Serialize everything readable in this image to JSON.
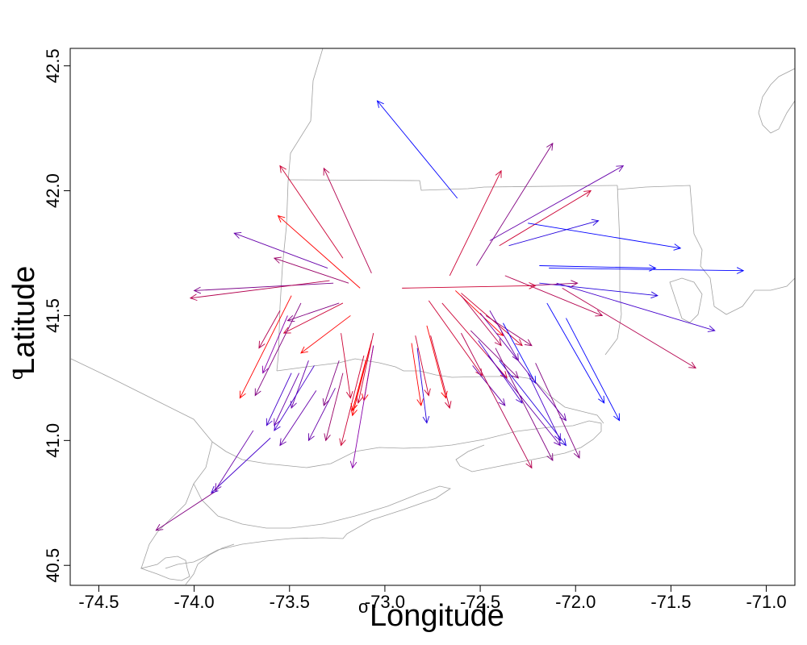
{
  "chart_data": {
    "type": "vector-field",
    "xlabel": "Longitude",
    "ylabel": "Latitude",
    "degree_symbol": "o",
    "xlim": [
      -74.65,
      -70.85
    ],
    "ylim": [
      40.42,
      42.57
    ],
    "xticks": [
      -74.5,
      -74.0,
      -73.5,
      -73.0,
      -72.5,
      -72.0,
      -71.5,
      -71.0
    ],
    "xtick_labels": [
      "-74.5",
      "-74.0",
      "-73.5",
      "-73.0",
      "-72.5",
      "-72.0",
      "-71.5",
      "-71.0"
    ],
    "yticks": [
      40.5,
      41.0,
      41.5,
      42.0,
      42.5
    ],
    "ytick_labels": [
      "40.5",
      "41.0",
      "41.5",
      "42.0",
      "42.5"
    ],
    "grid": false,
    "colors": {
      "red": "#ff0000",
      "purple": "#800080",
      "blue": "#0000ff",
      "map": "#a0a0a0"
    },
    "arrows": [
      {
        "x0": -73.22,
        "y0": 41.73,
        "x1": -73.55,
        "y1": 42.1,
        "color": "#cc0033"
      },
      {
        "x0": -73.13,
        "y0": 41.61,
        "x1": -73.56,
        "y1": 41.9,
        "color": "#ff0000"
      },
      {
        "x0": -73.07,
        "y0": 41.67,
        "x1": -73.32,
        "y1": 42.09,
        "color": "#b3004d"
      },
      {
        "x0": -73.3,
        "y0": 41.69,
        "x1": -73.79,
        "y1": 41.83,
        "color": "#6600aa"
      },
      {
        "x0": -73.19,
        "y0": 41.63,
        "x1": -73.58,
        "y1": 41.73,
        "color": "#990066"
      },
      {
        "x0": -73.27,
        "y0": 41.63,
        "x1": -74.0,
        "y1": 41.6,
        "color": "#7a0088"
      },
      {
        "x0": -73.29,
        "y0": 41.64,
        "x1": -74.02,
        "y1": 41.57,
        "color": "#b3004d"
      },
      {
        "x0": -73.24,
        "y0": 41.55,
        "x1": -73.51,
        "y1": 41.48,
        "color": "#800080"
      },
      {
        "x0": -73.22,
        "y0": 41.55,
        "x1": -73.53,
        "y1": 41.43,
        "color": "#cc0033"
      },
      {
        "x0": -73.18,
        "y0": 41.5,
        "x1": -73.44,
        "y1": 41.35,
        "color": "#ff0000"
      },
      {
        "x0": -73.49,
        "y0": 41.58,
        "x1": -73.76,
        "y1": 41.17,
        "color": "#ff0000"
      },
      {
        "x0": -73.55,
        "y0": 41.52,
        "x1": -73.66,
        "y1": 41.37,
        "color": "#b3004d"
      },
      {
        "x0": -73.44,
        "y0": 41.55,
        "x1": -73.68,
        "y1": 41.18,
        "color": "#800080"
      },
      {
        "x0": -73.51,
        "y0": 41.5,
        "x1": -73.64,
        "y1": 41.27,
        "color": "#8800aa"
      },
      {
        "x0": -73.49,
        "y0": 41.27,
        "x1": -73.62,
        "y1": 41.06,
        "color": "#4400cc"
      },
      {
        "x0": -73.45,
        "y0": 41.27,
        "x1": -73.58,
        "y1": 41.06,
        "color": "#6600aa"
      },
      {
        "x0": -73.4,
        "y0": 41.32,
        "x1": -73.49,
        "y1": 41.13,
        "color": "#6600aa"
      },
      {
        "x0": -73.37,
        "y0": 41.3,
        "x1": -73.58,
        "y1": 41.04,
        "color": "#4400cc"
      },
      {
        "x0": -73.36,
        "y0": 41.2,
        "x1": -73.55,
        "y1": 40.98,
        "color": "#6600aa"
      },
      {
        "x0": -73.26,
        "y0": 41.21,
        "x1": -73.4,
        "y1": 41.0,
        "color": "#6600aa"
      },
      {
        "x0": -73.22,
        "y0": 41.27,
        "x1": -73.31,
        "y1": 41.0,
        "color": "#990066"
      },
      {
        "x0": -73.24,
        "y0": 41.32,
        "x1": -73.32,
        "y1": 41.14,
        "color": "#800080"
      },
      {
        "x0": -73.11,
        "y0": 41.34,
        "x1": -73.23,
        "y1": 40.98,
        "color": "#cc0033"
      },
      {
        "x0": -73.08,
        "y0": 41.37,
        "x1": -73.17,
        "y1": 41.12,
        "color": "#ff0000"
      },
      {
        "x0": -73.07,
        "y0": 41.4,
        "x1": -73.17,
        "y1": 41.1,
        "color": "#ff0000"
      },
      {
        "x0": -73.06,
        "y0": 41.43,
        "x1": -73.14,
        "y1": 41.15,
        "color": "#cc0033"
      },
      {
        "x0": -73.06,
        "y0": 41.38,
        "x1": -73.11,
        "y1": 41.16,
        "color": "#ff0000"
      },
      {
        "x0": -73.1,
        "y0": 41.32,
        "x1": -73.17,
        "y1": 41.12,
        "color": "#ff0000"
      },
      {
        "x0": -73.06,
        "y0": 41.38,
        "x1": -73.17,
        "y1": 40.89,
        "color": "#8800aa"
      },
      {
        "x0": -73.23,
        "y0": 41.43,
        "x1": -73.18,
        "y1": 41.17,
        "color": "#cc0033"
      },
      {
        "x0": -73.88,
        "y0": 40.8,
        "x1": -74.2,
        "y1": 40.64,
        "color": "#800080"
      },
      {
        "x0": -73.6,
        "y0": 41.01,
        "x1": -73.91,
        "y1": 40.79,
        "color": "#4400cc"
      },
      {
        "x0": -73.69,
        "y0": 41.04,
        "x1": -73.89,
        "y1": 40.8,
        "color": "#6600aa"
      },
      {
        "x0": -72.86,
        "y0": 41.39,
        "x1": -72.81,
        "y1": 41.14,
        "color": "#ff0000"
      },
      {
        "x0": -72.84,
        "y0": 41.42,
        "x1": -72.77,
        "y1": 41.18,
        "color": "#cc0033"
      },
      {
        "x0": -72.83,
        "y0": 41.37,
        "x1": -72.78,
        "y1": 41.07,
        "color": "#2200dd"
      },
      {
        "x0": -72.78,
        "y0": 41.46,
        "x1": -72.68,
        "y1": 41.17,
        "color": "#ff0000"
      },
      {
        "x0": -72.76,
        "y0": 41.42,
        "x1": -72.66,
        "y1": 41.13,
        "color": "#cc0033"
      },
      {
        "x0": -72.66,
        "y0": 41.66,
        "x1": -72.39,
        "y1": 42.08,
        "color": "#cc0033"
      },
      {
        "x0": -72.52,
        "y0": 41.7,
        "x1": -72.12,
        "y1": 42.19,
        "color": "#800080"
      },
      {
        "x0": -72.62,
        "y0": 41.97,
        "x1": -73.04,
        "y1": 42.36,
        "color": "#0000ff"
      },
      {
        "x0": -72.35,
        "y0": 41.78,
        "x1": -71.88,
        "y1": 41.88,
        "color": "#2200dd"
      },
      {
        "x0": -72.45,
        "y0": 41.8,
        "x1": -71.75,
        "y1": 42.1,
        "color": "#6600aa"
      },
      {
        "x0": -72.4,
        "y0": 41.78,
        "x1": -71.92,
        "y1": 42.0,
        "color": "#cc0033"
      },
      {
        "x0": -72.25,
        "y0": 41.87,
        "x1": -71.45,
        "y1": 41.77,
        "color": "#0000ff"
      },
      {
        "x0": -72.19,
        "y0": 41.7,
        "x1": -71.58,
        "y1": 41.69,
        "color": "#0000ff"
      },
      {
        "x0": -72.14,
        "y0": 41.69,
        "x1": -71.12,
        "y1": 41.68,
        "color": "#0000ff"
      },
      {
        "x0": -72.19,
        "y0": 41.63,
        "x1": -71.57,
        "y1": 41.58,
        "color": "#2200dd"
      },
      {
        "x0": -72.25,
        "y0": 41.62,
        "x1": -71.99,
        "y1": 41.63,
        "color": "#990066"
      },
      {
        "x0": -72.1,
        "y0": 41.63,
        "x1": -71.27,
        "y1": 41.44,
        "color": "#4400cc"
      },
      {
        "x0": -72.07,
        "y0": 41.61,
        "x1": -71.37,
        "y1": 41.29,
        "color": "#b3004d"
      },
      {
        "x0": -72.37,
        "y0": 41.66,
        "x1": -71.86,
        "y1": 41.5,
        "color": "#b3004d"
      },
      {
        "x0": -72.91,
        "y0": 41.61,
        "x1": -72.21,
        "y1": 41.62,
        "color": "#cc0033"
      },
      {
        "x0": -72.63,
        "y0": 41.6,
        "x1": -72.38,
        "y1": 41.42,
        "color": "#ff0000"
      },
      {
        "x0": -72.6,
        "y0": 41.59,
        "x1": -72.28,
        "y1": 41.38,
        "color": "#cc0033"
      },
      {
        "x0": -72.6,
        "y0": 41.58,
        "x1": -72.39,
        "y1": 41.38,
        "color": "#b3004d"
      },
      {
        "x0": -72.47,
        "y0": 41.5,
        "x1": -72.23,
        "y1": 41.38,
        "color": "#990066"
      },
      {
        "x0": -72.45,
        "y0": 41.52,
        "x1": -72.3,
        "y1": 41.32,
        "color": "#6600aa"
      },
      {
        "x0": -72.38,
        "y0": 41.47,
        "x1": -72.21,
        "y1": 41.23,
        "color": "#0000ff"
      },
      {
        "x0": -72.7,
        "y0": 41.55,
        "x1": -72.36,
        "y1": 41.25,
        "color": "#cc0033"
      },
      {
        "x0": -72.77,
        "y0": 41.56,
        "x1": -72.49,
        "y1": 41.26,
        "color": "#cc0033"
      },
      {
        "x0": -72.55,
        "y0": 41.44,
        "x1": -72.3,
        "y1": 41.25,
        "color": "#800080"
      },
      {
        "x0": -72.51,
        "y0": 41.4,
        "x1": -72.28,
        "y1": 41.15,
        "color": "#4400cc"
      },
      {
        "x0": -72.54,
        "y0": 41.3,
        "x1": -72.37,
        "y1": 41.14,
        "color": "#6600aa"
      },
      {
        "x0": -72.6,
        "y0": 41.43,
        "x1": -72.23,
        "y1": 40.89,
        "color": "#b3004d"
      },
      {
        "x0": -72.46,
        "y0": 41.34,
        "x1": -72.08,
        "y1": 40.98,
        "color": "#6600aa"
      },
      {
        "x0": -72.4,
        "y0": 41.32,
        "x1": -72.05,
        "y1": 40.98,
        "color": "#2200dd"
      },
      {
        "x0": -72.42,
        "y0": 41.37,
        "x1": -72.12,
        "y1": 40.92,
        "color": "#800080"
      },
      {
        "x0": -72.25,
        "y0": 41.27,
        "x1": -72.08,
        "y1": 41.0,
        "color": "#4400cc"
      },
      {
        "x0": -72.21,
        "y0": 41.31,
        "x1": -71.98,
        "y1": 40.93,
        "color": "#800080"
      },
      {
        "x0": -72.15,
        "y0": 41.55,
        "x1": -71.85,
        "y1": 41.15,
        "color": "#0000ff"
      },
      {
        "x0": -72.05,
        "y0": 41.49,
        "x1": -71.77,
        "y1": 41.08,
        "color": "#0000ff"
      },
      {
        "x0": -72.5,
        "y0": 41.51,
        "x1": -72.05,
        "y1": 41.08,
        "color": "#6600aa"
      }
    ]
  }
}
